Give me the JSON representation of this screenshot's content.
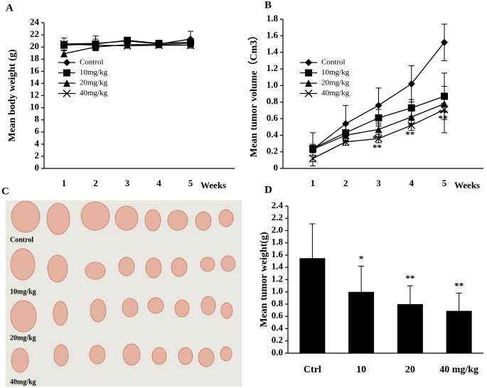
{
  "chart_data": [
    {
      "type": "line",
      "panel": "A",
      "y_label": "Mean body weight (g)",
      "x_label": "Weeks",
      "categories": [
        "1",
        "2",
        "3",
        "4",
        "5"
      ],
      "ylim": [
        0,
        24
      ],
      "yticks": [
        0,
        2,
        4,
        6,
        8,
        10,
        12,
        14,
        16,
        18,
        20,
        22,
        24
      ],
      "series": [
        {
          "name": "Control",
          "marker": "diamond",
          "color": "#000000",
          "values": [
            20.5,
            20.6,
            21.0,
            20.5,
            21.3
          ],
          "errors": [
            1.0,
            1.2,
            0.4,
            0.4,
            1.3
          ]
        },
        {
          "name": "10mg/kg",
          "marker": "square",
          "color": "#000000",
          "values": [
            20.3,
            20.5,
            21.1,
            20.6,
            20.8
          ],
          "errors": [
            0.5,
            0.8,
            0.4,
            0.4,
            0.5
          ]
        },
        {
          "name": "20mg/kg",
          "marker": "triangle",
          "color": "#000000",
          "values": [
            18.9,
            20.0,
            20.4,
            20.4,
            20.6
          ],
          "errors": [
            0.5,
            0.6,
            0.4,
            0.4,
            0.5
          ]
        },
        {
          "name": "40mg/kg",
          "marker": "x",
          "color": "#000000",
          "values": [
            20.5,
            20.3,
            20.2,
            20.3,
            20.3
          ],
          "errors": [
            0.4,
            0.5,
            0.4,
            0.4,
            0.5
          ]
        }
      ]
    },
    {
      "type": "line",
      "panel": "B",
      "y_label": "Mean tumor volume（Cm3）",
      "x_label": "Weeks",
      "categories": [
        "1",
        "2",
        "3",
        "4",
        "5"
      ],
      "ylim": [
        0,
        1.8
      ],
      "yticks": [
        0,
        0.2,
        0.4,
        0.6,
        0.8,
        {
          "value": 1,
          "label": "1.0"
        },
        1.2,
        1.4,
        1.6,
        1.8
      ],
      "series": [
        {
          "name": "Control",
          "marker": "diamond",
          "color": "#000000",
          "values": [
            0.23,
            0.54,
            0.76,
            1.02,
            1.52
          ],
          "errors": [
            0.2,
            0.22,
            0.21,
            0.22,
            0.22
          ]
        },
        {
          "name": "10mg/kg",
          "marker": "square",
          "color": "#000000",
          "values": [
            0.24,
            0.43,
            0.61,
            0.73,
            0.87
          ],
          "errors": [
            0.05,
            0.1,
            0.1,
            0.1,
            0.28
          ],
          "significance": [
            null,
            null,
            null,
            null,
            "*"
          ]
        },
        {
          "name": "20mg/kg",
          "marker": "triangle",
          "color": "#000000",
          "values": [
            0.23,
            0.4,
            0.47,
            0.62,
            0.78
          ],
          "errors": [
            0.04,
            0.06,
            0.06,
            0.08,
            0.1
          ],
          "significance": [
            null,
            null,
            "**",
            "*",
            "**"
          ]
        },
        {
          "name": "40mg/kg",
          "marker": "x",
          "color": "#000000",
          "values": [
            0.12,
            0.32,
            0.36,
            0.52,
            0.71
          ],
          "errors": [
            0.04,
            0.04,
            0.05,
            0.06,
            0.28
          ],
          "significance": [
            null,
            null,
            "**",
            "**",
            "**"
          ]
        }
      ]
    },
    {
      "type": "bar",
      "panel": "D",
      "y_label": "Mean tumor weight(g)",
      "categories": [
        "Ctrl",
        "10",
        "20",
        "40 mg/kg"
      ],
      "color": "#000000",
      "values": [
        1.55,
        1.0,
        0.8,
        0.69
      ],
      "errors": [
        0.56,
        0.42,
        0.3,
        0.29
      ],
      "significance": [
        null,
        "*",
        "**",
        "**"
      ],
      "ylim": [
        0,
        2.4
      ],
      "yticks": [
        {
          "value": 0,
          "label": "0.0"
        },
        0.2,
        0.4,
        0.6,
        0.8,
        {
          "value": 1,
          "label": "1.0"
        },
        1.2,
        1.4,
        1.6,
        1.8,
        {
          "value": 2,
          "label": "2.0"
        },
        2.2,
        2.4
      ]
    }
  ],
  "photo": {
    "panel": "C",
    "rows": [
      "Control",
      "10mg/kg",
      "20mg/kg",
      "40mg/kg"
    ]
  }
}
